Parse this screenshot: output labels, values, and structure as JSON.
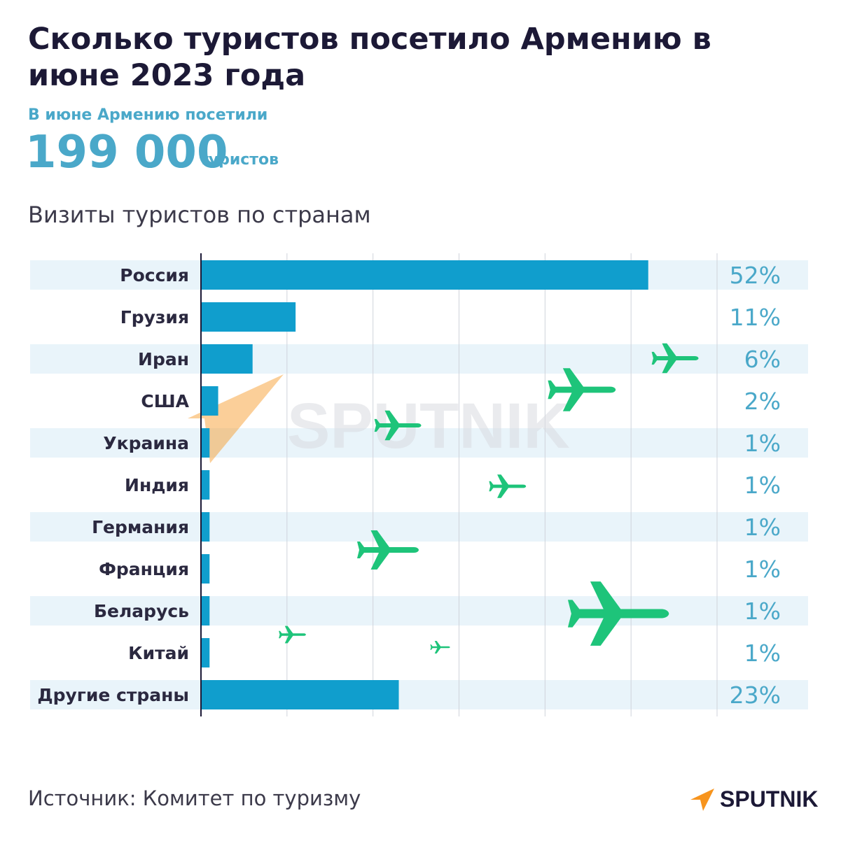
{
  "header": {
    "title": "Сколько туристов посетило Армению в июне 2023 года",
    "subtitle": "В июне Армению посетили",
    "total_value": "199 000",
    "total_unit": "туристов"
  },
  "chart_heading": "Визиты туристов по странам",
  "chart_data": {
    "type": "bar",
    "orientation": "horizontal",
    "title": "Визиты туристов по странам",
    "categories": [
      "Россия",
      "Грузия",
      "Иран",
      "США",
      "Украина",
      "Индия",
      "Германия",
      "Франция",
      "Беларусь",
      "Китай",
      "Другие страны"
    ],
    "values": [
      52,
      11,
      6,
      2,
      1,
      1,
      1,
      1,
      1,
      1,
      23
    ],
    "labels": [
      "52%",
      "11%",
      "6%",
      "2%",
      "1%",
      "1%",
      "1%",
      "1%",
      "1%",
      "1%",
      "23%"
    ],
    "unit": "%",
    "xlim": [
      0,
      60
    ],
    "grid": true,
    "xlabel": "",
    "ylabel": ""
  },
  "colors": {
    "bar": "#109ecd",
    "row_band": "#e9f4fa",
    "percent_text": "#4aa8c9",
    "title": "#1c1936",
    "gridline": "#cfd3db",
    "axis": "#1c1936",
    "plane": "#1ec47a",
    "logo_orange": "#f7941d"
  },
  "source": "Источник: Комитет по туризму",
  "logo": {
    "text": "SPUTNIK",
    "watermark": "SPUTNIK"
  }
}
